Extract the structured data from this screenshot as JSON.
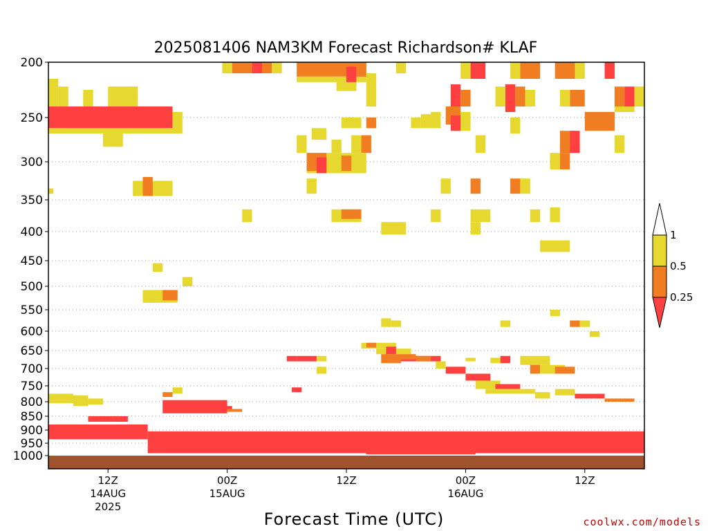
{
  "chart_data": {
    "type": "heatmap",
    "title": "2025081406 NAM3KM Forecast Richardson# KLAF",
    "xlabel": "Forecast Time (UTC)",
    "ylabel": "",
    "y_scale": "pressure (log-like, inverted)",
    "ylim": [
      1000,
      200
    ],
    "y_ticks": [
      "200",
      "250",
      "300",
      "350",
      "400",
      "450",
      "500",
      "550",
      "600",
      "650",
      "700",
      "750",
      "800",
      "850",
      "900",
      "950",
      "1000"
    ],
    "x_ticks": [
      {
        "hour": 6,
        "label": "12Z",
        "date": "14AUG",
        "year": "2025"
      },
      {
        "hour": 18,
        "label": "00Z",
        "date": "15AUG",
        "year": ""
      },
      {
        "hour": 30,
        "label": "12Z",
        "date": "",
        "year": ""
      },
      {
        "hour": 42,
        "label": "00Z",
        "date": "16AUG",
        "year": ""
      },
      {
        "hour": 54,
        "label": "12Z",
        "date": "",
        "year": ""
      }
    ],
    "x_range_hours": [
      0,
      60
    ],
    "grid": "dotted horizontal at pressure levels",
    "colorbar": {
      "placement": "right",
      "labels": [
        "1",
        "0.5",
        "0.25"
      ],
      "bins": [
        {
          "range": "0.5-1",
          "color": "#e6d82e"
        },
        {
          "range": "0.25-0.5",
          "color": "#f07d22"
        },
        {
          "range": "<0.25",
          "color": "#ff4040"
        }
      ]
    },
    "colors": {
      "yellow": "#e6d82e",
      "orange": "#f07d22",
      "red": "#ff4040",
      "ground": "#a0522d"
    },
    "cells": [
      {
        "x0": 0,
        "x1": 12.5,
        "p0": 240,
        "p1": 262,
        "c": "r"
      },
      {
        "x0": 0,
        "x1": 12.5,
        "p0": 262,
        "p1": 268,
        "c": "y"
      },
      {
        "x0": 12.5,
        "x1": 13.5,
        "p0": 245,
        "p1": 268,
        "c": "y"
      },
      {
        "x0": 0,
        "x1": 1,
        "p0": 215,
        "p1": 240,
        "c": "y"
      },
      {
        "x0": 1,
        "x1": 2,
        "p0": 222,
        "p1": 240,
        "c": "y"
      },
      {
        "x0": 3.5,
        "x1": 4.5,
        "p0": 225,
        "p1": 240,
        "c": "y"
      },
      {
        "x0": 6,
        "x1": 9,
        "p0": 222,
        "p1": 240,
        "c": "y"
      },
      {
        "x0": 5.5,
        "x1": 7.5,
        "p0": 268,
        "p1": 283,
        "c": "y"
      },
      {
        "x0": 8.5,
        "x1": 12.5,
        "p0": 325,
        "p1": 345,
        "c": "y"
      },
      {
        "x0": 9.5,
        "x1": 10.5,
        "p0": 320,
        "p1": 345,
        "c": "o"
      },
      {
        "x0": 0,
        "x1": 0.5,
        "p0": 335,
        "p1": 342,
        "c": "y"
      },
      {
        "x0": 10.5,
        "x1": 11.5,
        "p0": 455,
        "p1": 472,
        "c": "y"
      },
      {
        "x0": 13.5,
        "x1": 14.5,
        "p0": 482,
        "p1": 500,
        "c": "y"
      },
      {
        "x0": 9.5,
        "x1": 13,
        "p0": 508,
        "p1": 535,
        "c": "y"
      },
      {
        "x0": 11.5,
        "x1": 13,
        "p0": 508,
        "p1": 530,
        "c": "o"
      },
      {
        "x0": 17.5,
        "x1": 18.5,
        "p0": 200,
        "p1": 210,
        "c": "y"
      },
      {
        "x0": 18.5,
        "x1": 22.5,
        "p0": 200,
        "p1": 210,
        "c": "o"
      },
      {
        "x0": 20.5,
        "x1": 21.5,
        "p0": 200,
        "p1": 210,
        "c": "r"
      },
      {
        "x0": 22.5,
        "x1": 23.5,
        "p0": 200,
        "p1": 210,
        "c": "y"
      },
      {
        "x0": 25,
        "x1": 32,
        "p0": 200,
        "p1": 213,
        "c": "o"
      },
      {
        "x0": 25,
        "x1": 32,
        "p0": 213,
        "p1": 218,
        "c": "y"
      },
      {
        "x0": 30,
        "x1": 31,
        "p0": 204,
        "p1": 222,
        "c": "r"
      },
      {
        "x0": 29,
        "x1": 31,
        "p0": 218,
        "p1": 226,
        "c": "y"
      },
      {
        "x0": 31,
        "x1": 32,
        "p0": 200,
        "p1": 213,
        "c": "o"
      },
      {
        "x0": 32,
        "x1": 33,
        "p0": 210,
        "p1": 240,
        "c": "y"
      },
      {
        "x0": 35,
        "x1": 36,
        "p0": 200,
        "p1": 210,
        "c": "y"
      },
      {
        "x0": 29.5,
        "x1": 31.5,
        "p0": 250,
        "p1": 262,
        "c": "y"
      },
      {
        "x0": 32,
        "x1": 33,
        "p0": 250,
        "p1": 262,
        "c": "o"
      },
      {
        "x0": 36.5,
        "x1": 37.5,
        "p0": 250,
        "p1": 262,
        "c": "y"
      },
      {
        "x0": 37.5,
        "x1": 39,
        "p0": 247,
        "p1": 262,
        "c": "y"
      },
      {
        "x0": 25,
        "x1": 26,
        "p0": 270,
        "p1": 290,
        "c": "y"
      },
      {
        "x0": 26.5,
        "x1": 28,
        "p0": 262,
        "p1": 275,
        "c": "y"
      },
      {
        "x0": 28.5,
        "x1": 29.5,
        "p0": 275,
        "p1": 290,
        "c": "y"
      },
      {
        "x0": 30.5,
        "x1": 31.5,
        "p0": 270,
        "p1": 290,
        "c": "y"
      },
      {
        "x0": 31.5,
        "x1": 32.5,
        "p0": 270,
        "p1": 290,
        "c": "o"
      },
      {
        "x0": 26,
        "x1": 32,
        "p0": 290,
        "p1": 315,
        "c": "y"
      },
      {
        "x0": 26,
        "x1": 28,
        "p0": 290,
        "p1": 312,
        "c": "o"
      },
      {
        "x0": 27,
        "x1": 28,
        "p0": 295,
        "p1": 315,
        "c": "r"
      },
      {
        "x0": 29.5,
        "x1": 30.5,
        "p0": 293,
        "p1": 312,
        "c": "o"
      },
      {
        "x0": 26,
        "x1": 27,
        "p0": 322,
        "p1": 342,
        "c": "y"
      },
      {
        "x0": 28.5,
        "x1": 31.5,
        "p0": 365,
        "p1": 385,
        "c": "y"
      },
      {
        "x0": 29.5,
        "x1": 31.5,
        "p0": 365,
        "p1": 380,
        "c": "o"
      },
      {
        "x0": 19.5,
        "x1": 20.5,
        "p0": 365,
        "p1": 385,
        "c": "y"
      },
      {
        "x0": 33.5,
        "x1": 36,
        "p0": 385,
        "p1": 405,
        "c": "y"
      },
      {
        "x0": 41.5,
        "x1": 42.5,
        "p0": 200,
        "p1": 215,
        "c": "y"
      },
      {
        "x0": 42.5,
        "x1": 44,
        "p0": 200,
        "p1": 215,
        "c": "r"
      },
      {
        "x0": 40.5,
        "x1": 41.5,
        "p0": 220,
        "p1": 240,
        "c": "r"
      },
      {
        "x0": 41.5,
        "x1": 42.5,
        "p0": 225,
        "p1": 240,
        "c": "o"
      },
      {
        "x0": 40,
        "x1": 41.5,
        "p0": 240,
        "p1": 258,
        "c": "o"
      },
      {
        "x0": 40.5,
        "x1": 41.5,
        "p0": 248,
        "p1": 265,
        "c": "r"
      },
      {
        "x0": 41.5,
        "x1": 42.5,
        "p0": 245,
        "p1": 265,
        "c": "y"
      },
      {
        "x0": 38.5,
        "x1": 39.5,
        "p0": 245,
        "p1": 262,
        "c": "y"
      },
      {
        "x0": 46.5,
        "x1": 47.5,
        "p0": 200,
        "p1": 215,
        "c": "y"
      },
      {
        "x0": 47.5,
        "x1": 49.5,
        "p0": 200,
        "p1": 215,
        "c": "o"
      },
      {
        "x0": 46,
        "x1": 47,
        "p0": 220,
        "p1": 245,
        "c": "r"
      },
      {
        "x0": 45,
        "x1": 46,
        "p0": 222,
        "p1": 240,
        "c": "y"
      },
      {
        "x0": 47,
        "x1": 48,
        "p0": 222,
        "p1": 240,
        "c": "o"
      },
      {
        "x0": 48,
        "x1": 49,
        "p0": 225,
        "p1": 240,
        "c": "y"
      },
      {
        "x0": 46.5,
        "x1": 47.5,
        "p0": 250,
        "p1": 268,
        "c": "y"
      },
      {
        "x0": 51,
        "x1": 53,
        "p0": 200,
        "p1": 215,
        "c": "o"
      },
      {
        "x0": 53,
        "x1": 54,
        "p0": 200,
        "p1": 215,
        "c": "y"
      },
      {
        "x0": 52.5,
        "x1": 54,
        "p0": 225,
        "p1": 240,
        "c": "o"
      },
      {
        "x0": 51.5,
        "x1": 52.5,
        "p0": 225,
        "p1": 240,
        "c": "y"
      },
      {
        "x0": 56,
        "x1": 57,
        "p0": 200,
        "p1": 215,
        "c": "r"
      },
      {
        "x0": 57,
        "x1": 58,
        "p0": 222,
        "p1": 240,
        "c": "o"
      },
      {
        "x0": 58,
        "x1": 59,
        "p0": 222,
        "p1": 240,
        "c": "r"
      },
      {
        "x0": 59,
        "x1": 60,
        "p0": 222,
        "p1": 240,
        "c": "y"
      },
      {
        "x0": 57,
        "x1": 59,
        "p0": 240,
        "p1": 245,
        "c": "y"
      },
      {
        "x0": 54,
        "x1": 57,
        "p0": 245,
        "p1": 265,
        "c": "o"
      },
      {
        "x0": 56,
        "x1": 57,
        "p0": 245,
        "p1": 262,
        "c": "o"
      },
      {
        "x0": 51.5,
        "x1": 53,
        "p0": 265,
        "p1": 290,
        "c": "o"
      },
      {
        "x0": 52.5,
        "x1": 53.5,
        "p0": 265,
        "p1": 290,
        "c": "r"
      },
      {
        "x0": 57,
        "x1": 58,
        "p0": 270,
        "p1": 290,
        "c": "y"
      },
      {
        "x0": 43,
        "x1": 44,
        "p0": 270,
        "p1": 290,
        "c": "y"
      },
      {
        "x0": 50.5,
        "x1": 51.5,
        "p0": 290,
        "p1": 310,
        "c": "y"
      },
      {
        "x0": 51.5,
        "x1": 52.5,
        "p0": 290,
        "p1": 310,
        "c": "o"
      },
      {
        "x0": 39.5,
        "x1": 40.5,
        "p0": 322,
        "p1": 342,
        "c": "y"
      },
      {
        "x0": 42.5,
        "x1": 43.5,
        "p0": 322,
        "p1": 342,
        "c": "o"
      },
      {
        "x0": 46.5,
        "x1": 47.5,
        "p0": 322,
        "p1": 342,
        "c": "o"
      },
      {
        "x0": 47.5,
        "x1": 48.5,
        "p0": 322,
        "p1": 342,
        "c": "y"
      },
      {
        "x0": 38.5,
        "x1": 39.5,
        "p0": 365,
        "p1": 385,
        "c": "y"
      },
      {
        "x0": 42.5,
        "x1": 44.5,
        "p0": 365,
        "p1": 385,
        "c": "y"
      },
      {
        "x0": 42.5,
        "x1": 43.5,
        "p0": 385,
        "p1": 405,
        "c": "y"
      },
      {
        "x0": 48.5,
        "x1": 49.5,
        "p0": 365,
        "p1": 385,
        "c": "y"
      },
      {
        "x0": 50.5,
        "x1": 51.5,
        "p0": 362,
        "p1": 385,
        "c": "y"
      },
      {
        "x0": 49.5,
        "x1": 52.5,
        "p0": 415,
        "p1": 435,
        "c": "y"
      },
      {
        "x0": 50.5,
        "x1": 51.5,
        "p0": 550,
        "p1": 565,
        "c": "y"
      },
      {
        "x0": 33.5,
        "x1": 34.5,
        "p0": 570,
        "p1": 590,
        "c": "y"
      },
      {
        "x0": 34.5,
        "x1": 35.5,
        "p0": 575,
        "p1": 590,
        "c": "y"
      },
      {
        "x0": 45.5,
        "x1": 46.5,
        "p0": 575,
        "p1": 590,
        "c": "y"
      },
      {
        "x0": 52.5,
        "x1": 53.5,
        "p0": 575,
        "p1": 590,
        "c": "o"
      },
      {
        "x0": 53.5,
        "x1": 54.5,
        "p0": 575,
        "p1": 590,
        "c": "y"
      },
      {
        "x0": 54.5,
        "x1": 55.5,
        "p0": 600,
        "p1": 615,
        "c": "y"
      },
      {
        "x0": 31.5,
        "x1": 35,
        "p0": 630,
        "p1": 645,
        "c": "y"
      },
      {
        "x0": 32,
        "x1": 33,
        "p0": 630,
        "p1": 642,
        "c": "o"
      },
      {
        "x0": 33,
        "x1": 36.5,
        "p0": 645,
        "p1": 660,
        "c": "y"
      },
      {
        "x0": 34,
        "x1": 35,
        "p0": 640,
        "p1": 660,
        "c": "r"
      },
      {
        "x0": 33.5,
        "x1": 35.5,
        "p0": 660,
        "p1": 685,
        "c": "o"
      },
      {
        "x0": 35.5,
        "x1": 39.5,
        "p0": 665,
        "p1": 680,
        "c": "r"
      },
      {
        "x0": 35.5,
        "x1": 37,
        "p0": 660,
        "p1": 675,
        "c": "o"
      },
      {
        "x0": 37,
        "x1": 38.5,
        "p0": 665,
        "p1": 680,
        "c": "o"
      },
      {
        "x0": 39,
        "x1": 40,
        "p0": 680,
        "p1": 700,
        "c": "y"
      },
      {
        "x0": 40,
        "x1": 42,
        "p0": 695,
        "p1": 715,
        "c": "r"
      },
      {
        "x0": 42,
        "x1": 44.5,
        "p0": 715,
        "p1": 735,
        "c": "r"
      },
      {
        "x0": 43,
        "x1": 45.5,
        "p0": 735,
        "p1": 760,
        "c": "y"
      },
      {
        "x0": 45,
        "x1": 47.5,
        "p0": 745,
        "p1": 760,
        "c": "r"
      },
      {
        "x0": 25,
        "x1": 27,
        "p0": 665,
        "p1": 680,
        "c": "r"
      },
      {
        "x0": 24,
        "x1": 25,
        "p0": 665,
        "p1": 680,
        "c": "r"
      },
      {
        "x0": 27,
        "x1": 28,
        "p0": 665,
        "p1": 680,
        "c": "y"
      },
      {
        "x0": 27,
        "x1": 28,
        "p0": 695,
        "p1": 715,
        "c": "y"
      },
      {
        "x0": 42,
        "x1": 43,
        "p0": 670,
        "p1": 680,
        "c": "y"
      },
      {
        "x0": 44.5,
        "x1": 45.5,
        "p0": 670,
        "p1": 685,
        "c": "y"
      },
      {
        "x0": 45.5,
        "x1": 46.5,
        "p0": 665,
        "p1": 685,
        "c": "r"
      },
      {
        "x0": 47.5,
        "x1": 50.5,
        "p0": 665,
        "p1": 690,
        "c": "y"
      },
      {
        "x0": 48.5,
        "x1": 49.5,
        "p0": 690,
        "p1": 715,
        "c": "o"
      },
      {
        "x0": 49.5,
        "x1": 52,
        "p0": 690,
        "p1": 715,
        "c": "y"
      },
      {
        "x0": 51,
        "x1": 53,
        "p0": 695,
        "p1": 715,
        "c": "o"
      },
      {
        "x0": 24.5,
        "x1": 25.5,
        "p0": 755,
        "p1": 770,
        "c": "r"
      },
      {
        "x0": 44,
        "x1": 49,
        "p0": 760,
        "p1": 775,
        "c": "y"
      },
      {
        "x0": 49,
        "x1": 50.5,
        "p0": 770,
        "p1": 790,
        "c": "y"
      },
      {
        "x0": 51,
        "x1": 53,
        "p0": 760,
        "p1": 780,
        "c": "y"
      },
      {
        "x0": 53,
        "x1": 56,
        "p0": 775,
        "p1": 790,
        "c": "r"
      },
      {
        "x0": 56,
        "x1": 59,
        "p0": 790,
        "p1": 800,
        "c": "o"
      },
      {
        "x0": 0,
        "x1": 2.5,
        "p0": 775,
        "p1": 805,
        "c": "y"
      },
      {
        "x0": 2.5,
        "x1": 4,
        "p0": 780,
        "p1": 815,
        "c": "y"
      },
      {
        "x0": 4,
        "x1": 5.5,
        "p0": 790,
        "p1": 810,
        "c": "y"
      },
      {
        "x0": 12.5,
        "x1": 13.5,
        "p0": 755,
        "p1": 775,
        "c": "y"
      },
      {
        "x0": 11.5,
        "x1": 12.5,
        "p0": 770,
        "p1": 785,
        "c": "o"
      },
      {
        "x0": 11.5,
        "x1": 18,
        "p0": 795,
        "p1": 840,
        "c": "r"
      },
      {
        "x0": 13.5,
        "x1": 18.5,
        "p0": 815,
        "p1": 830,
        "c": "r"
      },
      {
        "x0": 18,
        "x1": 19.5,
        "p0": 825,
        "p1": 835,
        "c": "o"
      },
      {
        "x0": 0,
        "x1": 10,
        "p0": 880,
        "p1": 935,
        "c": "r"
      },
      {
        "x0": 4,
        "x1": 8,
        "p0": 850,
        "p1": 870,
        "c": "r"
      },
      {
        "x0": 10,
        "x1": 60,
        "p0": 905,
        "p1": 990,
        "c": "r"
      },
      {
        "x0": 32,
        "x1": 43,
        "p0": 950,
        "p1": 995,
        "c": "r"
      },
      {
        "x0": 0,
        "x1": 60,
        "p0": 1000,
        "p1": 1050,
        "c": "g"
      }
    ]
  },
  "credit": "coolwx.com/models"
}
